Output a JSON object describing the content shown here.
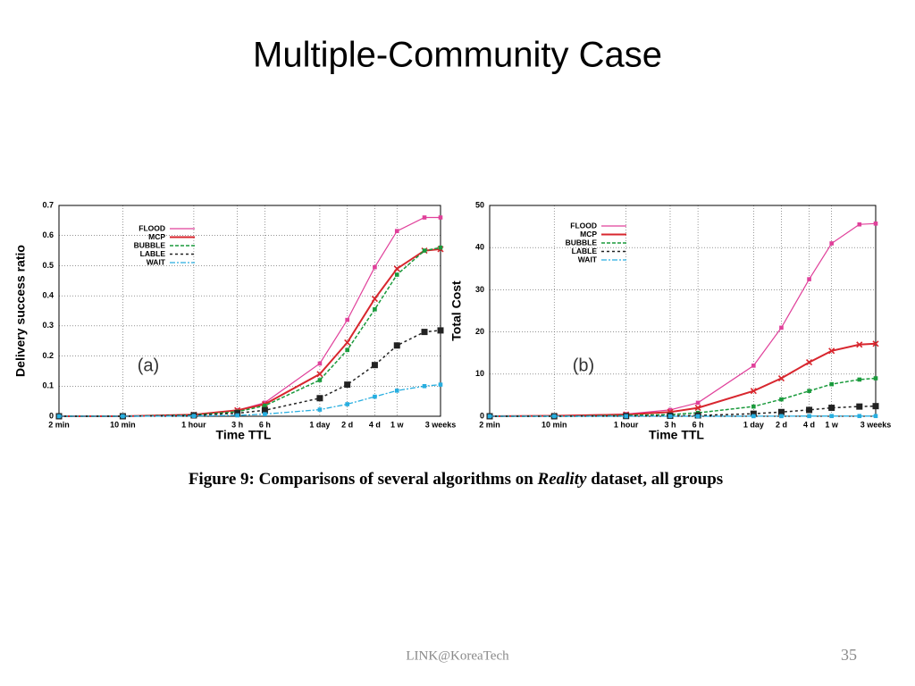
{
  "slide_title": "Multiple-Community Case",
  "caption": [
    "Figure 9:  Comparisons of several algorithms on ",
    "Reality",
    " dataset, all groups"
  ],
  "footer": "LINK@KoreaTech",
  "page_number": "35",
  "chart_data": [
    {
      "type": "line",
      "annotation": "(a)",
      "xlabel": "Time TTL",
      "ylabel": "Delivery success ratio",
      "xscale": "log",
      "grid": true,
      "legend": "upper left",
      "x": [
        2,
        10,
        60,
        180,
        360,
        1440,
        2880,
        5760,
        10080,
        20160,
        30240
      ],
      "xlim": [
        2,
        30240
      ],
      "xticks": [
        {
          "value": 2,
          "label": "2 min"
        },
        {
          "value": 10,
          "label": "10 min"
        },
        {
          "value": 60,
          "label": "1 hour"
        },
        {
          "value": 180,
          "label": "3 h"
        },
        {
          "value": 360,
          "label": "6 h"
        },
        {
          "value": 1440,
          "label": "1 day"
        },
        {
          "value": 2880,
          "label": "2 d"
        },
        {
          "value": 5760,
          "label": "4 d"
        },
        {
          "value": 10080,
          "label": "1 w"
        },
        {
          "value": 30240,
          "label": "3 weeks"
        }
      ],
      "ylim": [
        0,
        0.7
      ],
      "yticks": [
        0,
        0.1,
        0.2,
        0.3,
        0.4,
        0.5,
        0.6,
        0.7
      ],
      "series": [
        {
          "name": "FLOOD",
          "color": "#e0409a",
          "values": [
            0,
            0,
            0.005,
            0.02,
            0.045,
            0.175,
            0.32,
            0.495,
            0.615,
            0.66,
            0.66
          ]
        },
        {
          "name": "MCP",
          "color": "#d8262e",
          "values": [
            0,
            0,
            0.005,
            0.02,
            0.04,
            0.14,
            0.245,
            0.39,
            0.49,
            0.55,
            0.555
          ]
        },
        {
          "name": "BUBBLE",
          "color": "#1a9a3c",
          "values": [
            0,
            0,
            0.004,
            0.015,
            0.035,
            0.12,
            0.22,
            0.355,
            0.47,
            0.55,
            0.56
          ]
        },
        {
          "name": "LABLE",
          "color": "#222222",
          "values": [
            0,
            0,
            0.003,
            0.01,
            0.02,
            0.06,
            0.105,
            0.17,
            0.235,
            0.28,
            0.285
          ]
        },
        {
          "name": "WAIT",
          "color": "#27aee0",
          "values": [
            0,
            0,
            0.001,
            0.003,
            0.007,
            0.022,
            0.04,
            0.065,
            0.085,
            0.1,
            0.105
          ]
        }
      ]
    },
    {
      "type": "line",
      "annotation": "(b)",
      "xlabel": "Time TTL",
      "ylabel": "Total Cost",
      "xscale": "log",
      "grid": true,
      "legend": "upper left",
      "x": [
        2,
        10,
        60,
        180,
        360,
        1440,
        2880,
        5760,
        10080,
        20160,
        30240
      ],
      "xlim": [
        2,
        30240
      ],
      "xticks": [
        {
          "value": 2,
          "label": "2 min"
        },
        {
          "value": 10,
          "label": "10 min"
        },
        {
          "value": 60,
          "label": "1 hour"
        },
        {
          "value": 180,
          "label": "3 h"
        },
        {
          "value": 360,
          "label": "6 h"
        },
        {
          "value": 1440,
          "label": "1 day"
        },
        {
          "value": 2880,
          "label": "2 d"
        },
        {
          "value": 5760,
          "label": "4 d"
        },
        {
          "value": 10080,
          "label": "1 w"
        },
        {
          "value": 30240,
          "label": "3 weeks"
        }
      ],
      "ylim": [
        0,
        50
      ],
      "yticks": [
        0,
        10,
        20,
        30,
        40,
        50
      ],
      "series": [
        {
          "name": "FLOOD",
          "color": "#e0409a",
          "values": [
            0,
            0.1,
            0.5,
            1.5,
            3.2,
            12,
            21,
            32.5,
            41,
            45.5,
            45.7
          ]
        },
        {
          "name": "MCP",
          "color": "#d8262e",
          "values": [
            0,
            0.1,
            0.4,
            1,
            2,
            6,
            9,
            12.8,
            15.5,
            17,
            17.2
          ]
        },
        {
          "name": "BUBBLE",
          "color": "#1a9a3c",
          "values": [
            0,
            0,
            0.2,
            0.4,
            0.8,
            2.3,
            4,
            6,
            7.6,
            8.7,
            9
          ]
        },
        {
          "name": "LABLE",
          "color": "#222222",
          "values": [
            0,
            0,
            0.05,
            0.1,
            0.2,
            0.6,
            1,
            1.5,
            2,
            2.3,
            2.4
          ]
        },
        {
          "name": "WAIT",
          "color": "#27aee0",
          "values": [
            0,
            0,
            0,
            0,
            0,
            0.02,
            0.03,
            0.04,
            0.05,
            0.05,
            0.05
          ]
        }
      ]
    }
  ]
}
